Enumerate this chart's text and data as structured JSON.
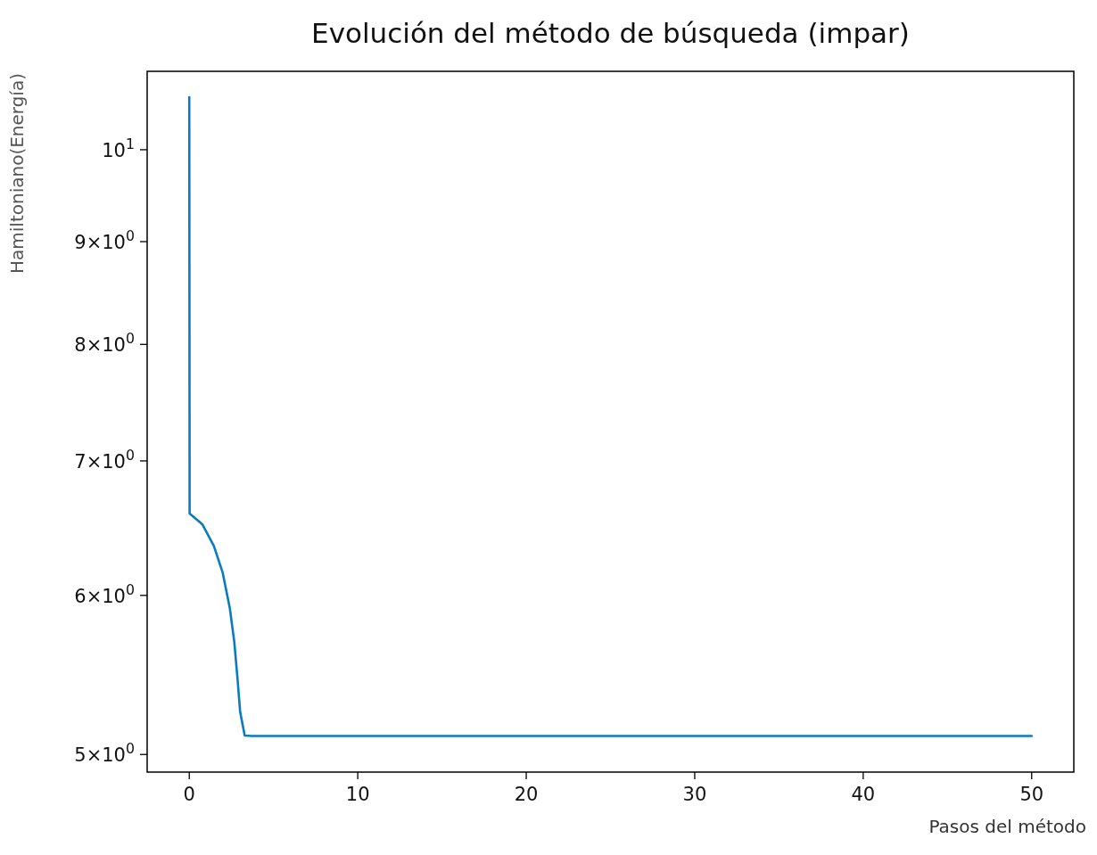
{
  "chart_data": {
    "type": "line",
    "title": "Evolución del método de búsqueda (impar)",
    "xlabel": "Pasos del método",
    "ylabel": "Hamiltoniano(Energía)",
    "log": "y",
    "grid": false,
    "xlim": [
      -2.5,
      52.5
    ],
    "xticks": [
      0,
      10,
      20,
      30,
      40,
      50
    ],
    "ylim": [
      4.9,
      10.94
    ],
    "yticks": [
      {
        "value": 5,
        "label": "5×10$^{0}$"
      },
      {
        "value": 6,
        "label": "6×10$^{0}$"
      },
      {
        "value": 7,
        "label": "7×10$^{0}$"
      },
      {
        "value": 8,
        "label": "8×10$^{0}$"
      },
      {
        "value": 9,
        "label": "9×10$^{0}$"
      },
      {
        "value": 10,
        "label": "10$^{1}$"
      }
    ],
    "series": [
      {
        "color": "#0a7bc0",
        "x": [
          0,
          0.02,
          0.77,
          1.46,
          1.98,
          2.41,
          2.67,
          2.85,
          3.02,
          3.29,
          3.72,
          10,
          20,
          30,
          40,
          50
        ],
        "values": [
          10.62,
          6.59,
          6.51,
          6.35,
          6.16,
          5.91,
          5.69,
          5.47,
          5.25,
          5.11,
          5.107,
          5.107,
          5.107,
          5.107,
          5.107,
          5.107
        ]
      }
    ]
  }
}
